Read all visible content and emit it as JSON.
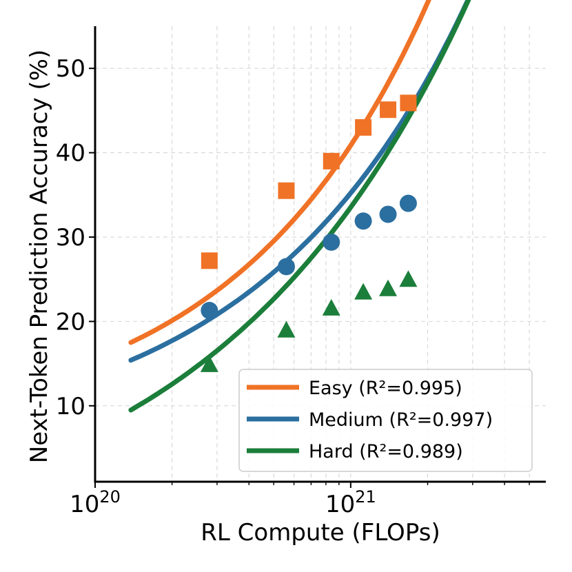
{
  "chart_data": {
    "type": "line",
    "title": "",
    "xlabel": "RL Compute (FLOPs)",
    "ylabel": "Next-Token Prediction Accuracy (%)",
    "xscale": "log",
    "xlim": [
      1e+20,
      5.8e+21
    ],
    "ylim": [
      1,
      55
    ],
    "grid": true,
    "legend_position": "lower-right",
    "x_tick_labels": [
      {
        "value": 1e+20,
        "base": "10",
        "exponent": "20"
      },
      {
        "value": 1e+21,
        "base": "10",
        "exponent": "21"
      }
    ],
    "y_ticks": [
      10,
      20,
      30,
      40,
      50
    ],
    "y_tick_labels": [
      "10",
      "20",
      "30",
      "40",
      "50"
    ],
    "fit_x_range": [
      1.38e+20,
      5e+21
    ],
    "series": [
      {
        "name": "Easy",
        "legend_label": "Easy (R²=0.995)",
        "color": "#f07226",
        "marker": "square",
        "x": [
          2.8e+20,
          5.6e+20,
          8.4e+20,
          1.12e+21,
          1.4e+21,
          1.68e+21
        ],
        "y": [
          27.2,
          35.5,
          39.0,
          43.0,
          45.1,
          45.9
        ],
        "fit": {
          "a": 17.5,
          "b": 0.9,
          "p": 0.58
        }
      },
      {
        "name": "Medium",
        "legend_label": "Medium (R²=0.997)",
        "color": "#2b6fa0",
        "marker": "circle",
        "x": [
          2.8e+20,
          5.6e+20,
          8.4e+20,
          1.12e+21,
          1.4e+21,
          1.68e+21
        ],
        "y": [
          21.3,
          26.5,
          29.4,
          31.9,
          32.7,
          34.0
        ],
        "fit": {
          "a": 15.4,
          "b": 0.9,
          "p": 0.53
        }
      },
      {
        "name": "Hard",
        "legend_label": "Hard (R²=0.989)",
        "color": "#1b7e3a",
        "marker": "triangle",
        "x": [
          2.8e+20,
          5.6e+20,
          8.4e+20,
          1.12e+21,
          1.4e+21,
          1.68e+21
        ],
        "y": [
          14.9,
          19.0,
          21.6,
          23.5,
          23.9,
          25.0
        ],
        "fit": {
          "a": 9.5,
          "b": 1.5,
          "p": 0.44
        }
      }
    ]
  }
}
